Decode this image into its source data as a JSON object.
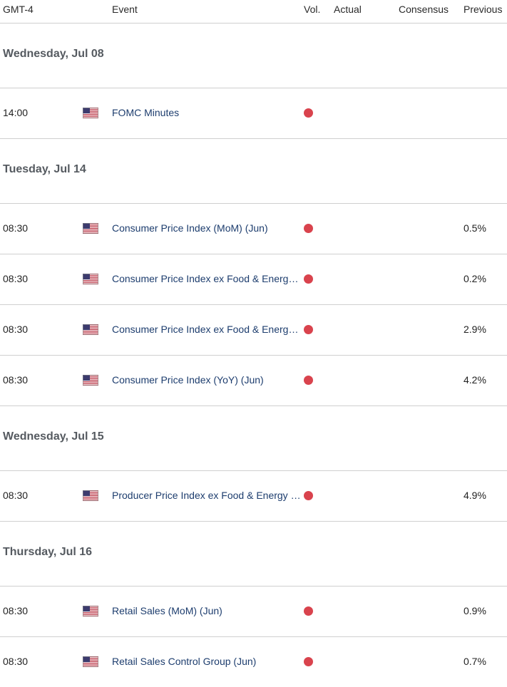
{
  "header": {
    "timezone": "GMT-4",
    "event": "Event",
    "vol": "Vol.",
    "actual": "Actual",
    "consensus": "Consensus",
    "previous": "Previous"
  },
  "colors": {
    "high_volatility": "#d9434d",
    "event_text": "#1d3d6e",
    "divider": "#cfcfcf"
  },
  "rows": [
    {
      "type": "day",
      "label": "Wednesday, Jul 08"
    },
    {
      "type": "event",
      "time": "14:00",
      "country_icon": "us-flag-icon",
      "event": "FOMC Minutes",
      "volatility": "high",
      "actual": "",
      "consensus": "",
      "previous": ""
    },
    {
      "type": "day",
      "label": "Tuesday, Jul 14"
    },
    {
      "type": "event",
      "time": "08:30",
      "country_icon": "us-flag-icon",
      "event": "Consumer Price Index (MoM) (Jun)",
      "volatility": "high",
      "actual": "",
      "consensus": "",
      "previous": "0.5%"
    },
    {
      "type": "event",
      "time": "08:30",
      "country_icon": "us-flag-icon",
      "event": "Consumer Price Index ex Food & Energy (MoM) (Jun)",
      "volatility": "high",
      "actual": "",
      "consensus": "",
      "previous": "0.2%"
    },
    {
      "type": "event",
      "time": "08:30",
      "country_icon": "us-flag-icon",
      "event": "Consumer Price Index ex Food & Energy (YoY) (Jun)",
      "volatility": "high",
      "actual": "",
      "consensus": "",
      "previous": "2.9%"
    },
    {
      "type": "event",
      "time": "08:30",
      "country_icon": "us-flag-icon",
      "event": "Consumer Price Index (YoY) (Jun)",
      "volatility": "high",
      "actual": "",
      "consensus": "",
      "previous": "4.2%"
    },
    {
      "type": "day",
      "label": "Wednesday, Jul 15"
    },
    {
      "type": "event",
      "time": "08:30",
      "country_icon": "us-flag-icon",
      "event": "Producer Price Index ex Food & Energy (YoY) (Jun)",
      "volatility": "high",
      "actual": "",
      "consensus": "",
      "previous": "4.9%"
    },
    {
      "type": "day",
      "label": "Thursday, Jul 16"
    },
    {
      "type": "event",
      "time": "08:30",
      "country_icon": "us-flag-icon",
      "event": "Retail Sales (MoM) (Jun)",
      "volatility": "high",
      "actual": "",
      "consensus": "",
      "previous": "0.9%"
    },
    {
      "type": "event",
      "time": "08:30",
      "country_icon": "us-flag-icon",
      "event": "Retail Sales Control Group (Jun)",
      "volatility": "high",
      "actual": "",
      "consensus": "",
      "previous": "0.7%"
    }
  ]
}
